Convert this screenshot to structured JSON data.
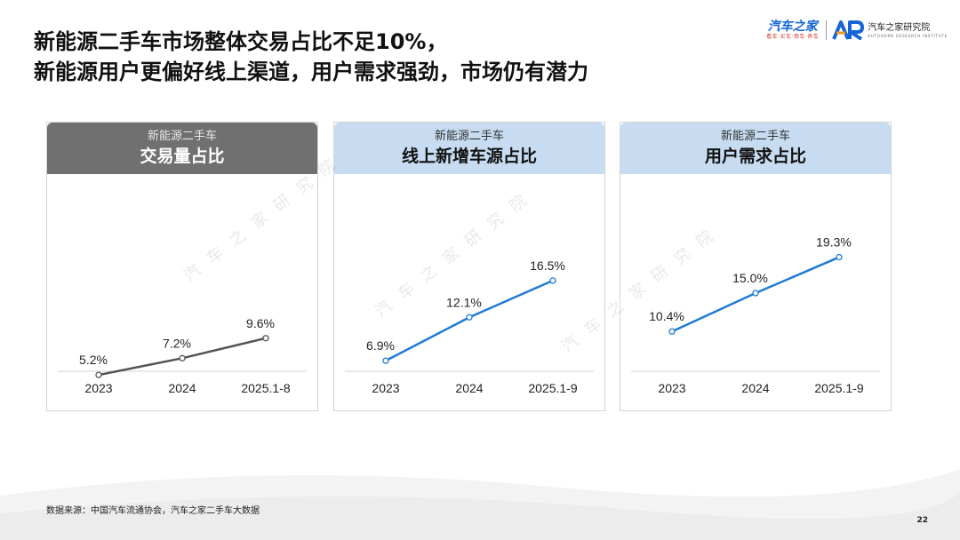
{
  "title": {
    "line1": "新能源二手车市场整体交易占比不足10%，",
    "line2": "新能源用户更偏好线上渠道，用户需求强劲，市场仍有潜力"
  },
  "brand": {
    "name": "汽车之家",
    "slogan": "看车·买车·用车·养车",
    "institute": "汽车之家研究院",
    "institute_en": "AUTOHOME RESEARCH INSTITUTE"
  },
  "watermark": "汽车之家研究院",
  "colors": {
    "gray_line": "#555555",
    "blue_line": "#1f7ad6",
    "header_dark": "#707070",
    "header_light": "#c7dcf1"
  },
  "panels": [
    {
      "sub": "新能源二手车",
      "main": "交易量占比"
    },
    {
      "sub": "新能源二手车",
      "main": "线上新增车源占比"
    },
    {
      "sub": "新能源二手车",
      "main": "用户需求占比"
    }
  ],
  "chart_data": [
    {
      "type": "line",
      "title": "新能源二手车 交易量占比",
      "categories": [
        "2023",
        "2024",
        "2025.1-8"
      ],
      "series": [
        {
          "values": [
            5.2,
            7.2,
            9.6
          ]
        }
      ],
      "data_labels": [
        "5.2%",
        "7.2%",
        "9.6%"
      ],
      "ylim": [
        0,
        25
      ],
      "color": "#555555",
      "grid": false
    },
    {
      "type": "line",
      "title": "新能源二手车 线上新增车源占比",
      "categories": [
        "2023",
        "2024",
        "2025.1-9"
      ],
      "series": [
        {
          "values": [
            6.9,
            12.1,
            16.5
          ]
        }
      ],
      "data_labels": [
        "6.9%",
        "12.1%",
        "16.5%"
      ],
      "ylim": [
        0,
        25
      ],
      "color": "#1f7ad6",
      "grid": false
    },
    {
      "type": "line",
      "title": "新能源二手车 用户需求占比",
      "categories": [
        "2023",
        "2024",
        "2025.1-9"
      ],
      "series": [
        {
          "values": [
            10.4,
            15.0,
            19.3
          ]
        }
      ],
      "data_labels": [
        "10.4%",
        "15.0%",
        "19.3%"
      ],
      "ylim": [
        0,
        25
      ],
      "color": "#1f7ad6",
      "grid": false
    }
  ],
  "footer": {
    "source": "数据来源：中国汽车流通协会，汽车之家二手车大数据",
    "page": "22"
  }
}
